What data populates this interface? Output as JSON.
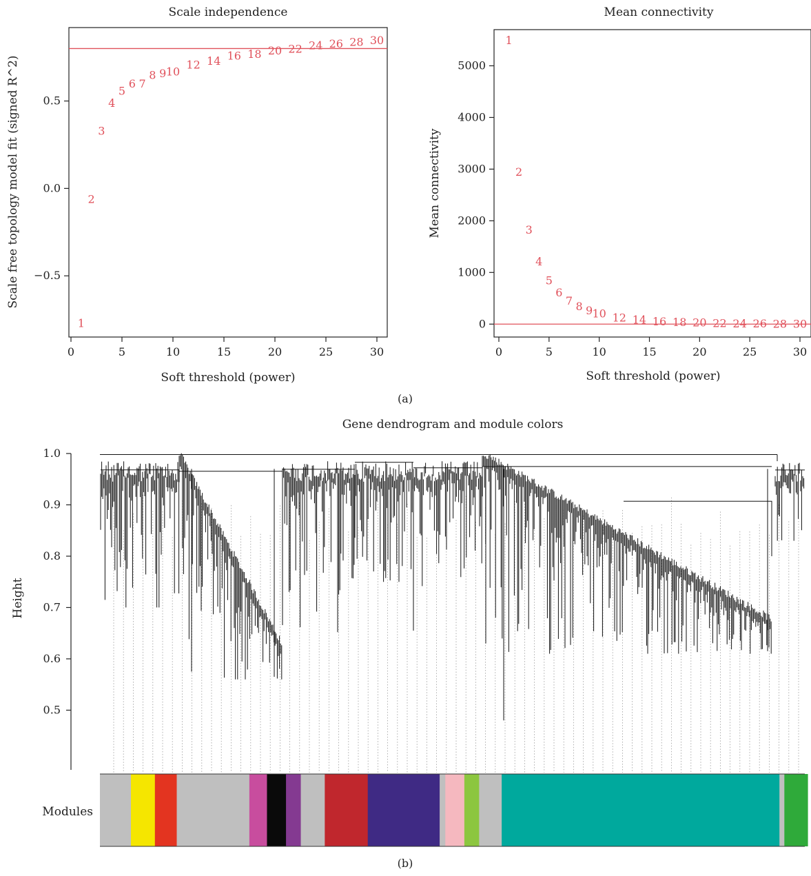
{
  "chart_data": [
    {
      "type": "scatter",
      "title": "Scale independence",
      "xlabel": "Soft threshold (power)",
      "ylabel": "Scale free topology model fit (signed R^2)",
      "xlim": [
        0,
        31
      ],
      "ylim": [
        -0.85,
        0.92
      ],
      "x_ticks": [
        "0",
        "5",
        "10",
        "15",
        "20",
        "25",
        "30"
      ],
      "y_ticks": [
        "−0.5",
        "0.0",
        "0.5"
      ],
      "y_tick_values": [
        -0.5,
        0.0,
        0.5
      ],
      "hline": 0.8,
      "points": [
        {
          "label": "1",
          "x": 1,
          "y": -0.77
        },
        {
          "label": "2",
          "x": 2,
          "y": -0.06
        },
        {
          "label": "3",
          "x": 3,
          "y": 0.33
        },
        {
          "label": "4",
          "x": 4,
          "y": 0.49
        },
        {
          "label": "5",
          "x": 5,
          "y": 0.56
        },
        {
          "label": "6",
          "x": 6,
          "y": 0.6
        },
        {
          "label": "7",
          "x": 7,
          "y": 0.6
        },
        {
          "label": "8",
          "x": 8,
          "y": 0.65
        },
        {
          "label": "9",
          "x": 9,
          "y": 0.66
        },
        {
          "label": "10",
          "x": 10,
          "y": 0.67
        },
        {
          "label": "12",
          "x": 12,
          "y": 0.71
        },
        {
          "label": "14",
          "x": 14,
          "y": 0.73
        },
        {
          "label": "16",
          "x": 16,
          "y": 0.76
        },
        {
          "label": "18",
          "x": 18,
          "y": 0.77
        },
        {
          "label": "20",
          "x": 20,
          "y": 0.79
        },
        {
          "label": "22",
          "x": 22,
          "y": 0.8
        },
        {
          "label": "24",
          "x": 24,
          "y": 0.82
        },
        {
          "label": "26",
          "x": 26,
          "y": 0.83
        },
        {
          "label": "28",
          "x": 28,
          "y": 0.84
        },
        {
          "label": "30",
          "x": 30,
          "y": 0.85
        }
      ],
      "grid": false,
      "point_color": "#e0505a"
    },
    {
      "type": "scatter",
      "title": "Mean connectivity",
      "xlabel": "Soft threshold (power)",
      "ylabel": "Mean connectivity",
      "xlim": [
        0,
        31
      ],
      "ylim": [
        -250,
        5700
      ],
      "x_ticks": [
        "0",
        "5",
        "10",
        "15",
        "20",
        "25",
        "30"
      ],
      "y_ticks": [
        "0",
        "1000",
        "2000",
        "3000",
        "4000",
        "5000"
      ],
      "y_tick_values": [
        0,
        1000,
        2000,
        3000,
        4000,
        5000
      ],
      "hline": 0,
      "points": [
        {
          "label": "1",
          "x": 1,
          "y": 5500
        },
        {
          "label": "2",
          "x": 2,
          "y": 2950
        },
        {
          "label": "3",
          "x": 3,
          "y": 1830
        },
        {
          "label": "4",
          "x": 4,
          "y": 1220
        },
        {
          "label": "5",
          "x": 5,
          "y": 850
        },
        {
          "label": "6",
          "x": 6,
          "y": 620
        },
        {
          "label": "7",
          "x": 7,
          "y": 460
        },
        {
          "label": "8",
          "x": 8,
          "y": 350
        },
        {
          "label": "9",
          "x": 9,
          "y": 270
        },
        {
          "label": "10",
          "x": 10,
          "y": 210
        },
        {
          "label": "12",
          "x": 12,
          "y": 130
        },
        {
          "label": "14",
          "x": 14,
          "y": 90
        },
        {
          "label": "16",
          "x": 16,
          "y": 60
        },
        {
          "label": "18",
          "x": 18,
          "y": 45
        },
        {
          "label": "20",
          "x": 20,
          "y": 35
        },
        {
          "label": "22",
          "x": 22,
          "y": 25
        },
        {
          "label": "24",
          "x": 24,
          "y": 20
        },
        {
          "label": "26",
          "x": 26,
          "y": 15
        },
        {
          "label": "28",
          "x": 28,
          "y": 10
        },
        {
          "label": "30",
          "x": 30,
          "y": 8
        }
      ],
      "grid": false,
      "point_color": "#e0505a"
    },
    {
      "type": "dendrogram",
      "title": "Gene dendrogram and module colors",
      "ylabel": "Height",
      "y_ticks": [
        "0.5",
        "0.6",
        "0.7",
        "0.8",
        "0.9",
        "1.0"
      ],
      "y_tick_values": [
        0.5,
        0.6,
        0.7,
        0.8,
        0.9,
        1.0
      ],
      "ylim": [
        0.42,
        1.0
      ],
      "color_bar_label": "Modules",
      "modules": [
        {
          "color": "#bfbfbf",
          "fraction": 0.044
        },
        {
          "color": "#f5e600",
          "fraction": 0.034
        },
        {
          "color": "#e33420",
          "fraction": 0.031
        },
        {
          "color": "#bfbfbf",
          "fraction": 0.103
        },
        {
          "color": "#c84d9e",
          "fraction": 0.025
        },
        {
          "color": "#0a0a0a",
          "fraction": 0.027
        },
        {
          "color": "#843a91",
          "fraction": 0.021
        },
        {
          "color": "#bfbfbf",
          "fraction": 0.034
        },
        {
          "color": "#c0272d",
          "fraction": 0.061
        },
        {
          "color": "#3f2a84",
          "fraction": 0.102
        },
        {
          "color": "#bfbfbf",
          "fraction": 0.008
        },
        {
          "color": "#f5b8bf",
          "fraction": 0.027
        },
        {
          "color": "#8cc63f",
          "fraction": 0.021
        },
        {
          "color": "#bfbfbf",
          "fraction": 0.032
        },
        {
          "color": "#00a99d",
          "fraction": 0.394
        },
        {
          "color": "#bfbfbf",
          "fraction": 0.007
        },
        {
          "color": "#2faa3a",
          "fraction": 0.033
        }
      ]
    }
  ],
  "captions": {
    "a": "(a)",
    "b": "(b)"
  }
}
